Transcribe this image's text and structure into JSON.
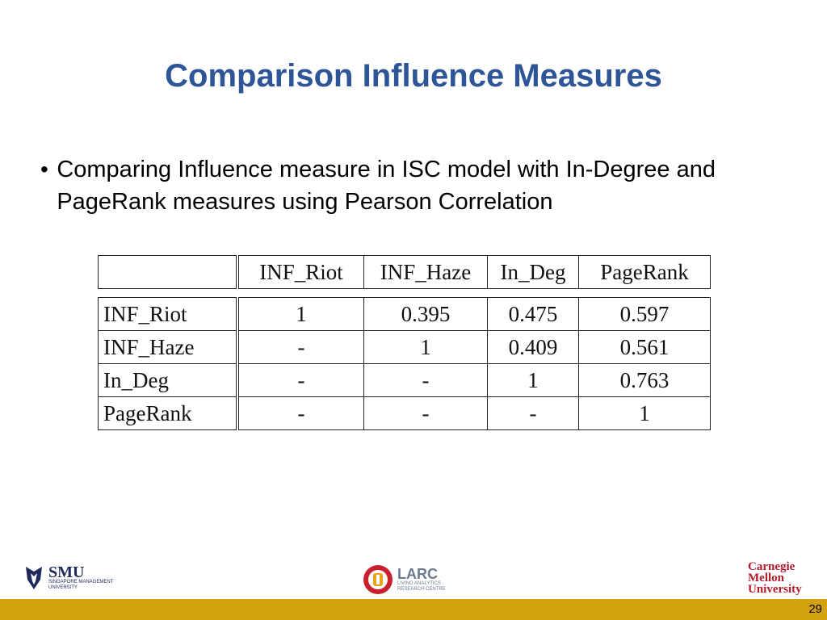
{
  "slide": {
    "title": "Comparison Influence Measures",
    "bullet": "Comparing Influence measure in ISC model with In-Degree and PageRank measures using Pearson Correlation",
    "page_number": "29"
  },
  "table": {
    "headers": [
      "",
      "INF_Riot",
      "INF_Haze",
      "In_Deg",
      "PageRank"
    ],
    "rows": [
      {
        "label": "INF_Riot",
        "values": [
          "1",
          "0.395",
          "0.475",
          "0.597"
        ]
      },
      {
        "label": "INF_Haze",
        "values": [
          "-",
          "1",
          "0.409",
          "0.561"
        ]
      },
      {
        "label": "In_Deg",
        "values": [
          "-",
          "-",
          "1",
          "0.763"
        ]
      },
      {
        "label": "PageRank",
        "values": [
          "-",
          "-",
          "-",
          "1"
        ]
      }
    ]
  },
  "logos": {
    "smu": {
      "name": "SMU",
      "line1": "SINGAPORE MANAGEMENT",
      "line2": "UNIVERSITY"
    },
    "larc": {
      "name": "LARC",
      "line1": "LIVING ANALYTICS",
      "line2": "RESEARCH CENTRE"
    },
    "cmu": {
      "line1": "Carnegie",
      "line2": "Mellon",
      "line3": "University"
    }
  },
  "colors": {
    "title": "#2e5597",
    "footer_bar": "#d4a20e",
    "cmu_red": "#b01c2e"
  }
}
